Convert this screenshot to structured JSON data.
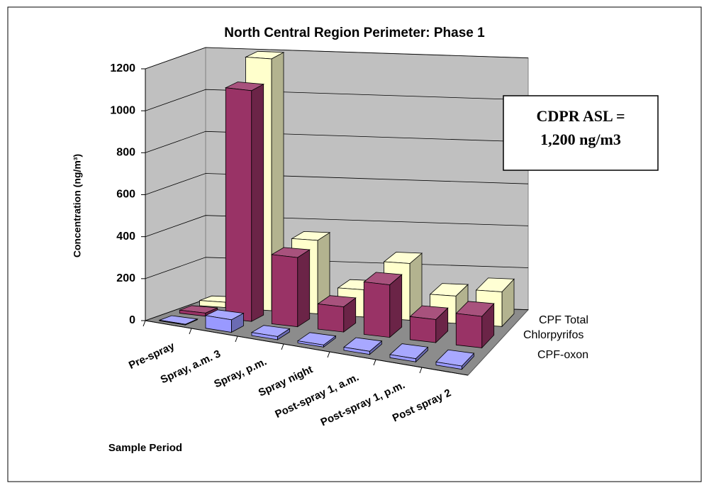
{
  "chart_data": {
    "type": "bar3d",
    "title": "North Central Region Perimeter: Phase 1",
    "y_label": "Concentration (ng/m³)",
    "x_label": "Sample Period",
    "annotation": [
      "CDPR ASL =",
      "1,200 ng/m3"
    ],
    "categories": [
      "Pre-spray",
      "Spray, a.m. 3",
      "Spray, p.m.",
      "Spray night",
      "Post-spray 1, a.m.",
      "Post-spray 1, p.m.",
      "Post spray 2"
    ],
    "series": [
      {
        "name": "CPF-oxon",
        "color": "#9999ff",
        "values": [
          3,
          60,
          15,
          10,
          15,
          15,
          15
        ]
      },
      {
        "name": "Chlorpyrifos",
        "color": "#993366",
        "values": [
          15,
          1100,
          330,
          120,
          250,
          110,
          150
        ]
      },
      {
        "name": "CPF Total",
        "color": "#ffffcc",
        "values": [
          25,
          1200,
          350,
          130,
          270,
          130,
          165
        ]
      }
    ],
    "ylim": [
      0,
      1200
    ],
    "yticks": [
      0,
      200,
      400,
      600,
      800,
      1000,
      1200
    ],
    "grid": true
  }
}
